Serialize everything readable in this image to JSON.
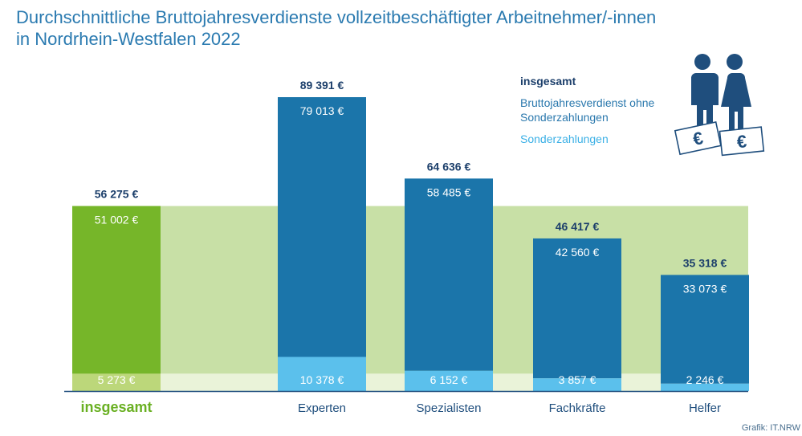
{
  "title_line1": "Durchschnittliche Bruttojahresverdienste vollzeitbeschäftigter Arbeitnehmer/-innen",
  "title_line2": "in Nordrhein-Westfalen 2022",
  "source": "Grafik: IT.NRW",
  "legend": {
    "total": "insgesamt",
    "base": "Bruttojahresverdienst ohne Sonderzahlungen",
    "special": "Sonderzahlungen"
  },
  "colors": {
    "base_highlight": "#76b629",
    "special_highlight": "#bcd77a",
    "base": "#1b75aa",
    "special": "#5bc0ec",
    "band_base": "#c8e0a6",
    "band_special": "#eaf3d9",
    "total_label": "#1c3f6b",
    "highlight_label": "#6ab023",
    "category_label": "#1f4e7d"
  },
  "chart_data": {
    "type": "bar",
    "stacked": true,
    "unit": "€",
    "categories": [
      "insgesamt",
      "Experten",
      "Spezialisten",
      "Fachkräfte",
      "Helfer"
    ],
    "series": [
      {
        "name": "Bruttojahresverdienst ohne Sonderzahlungen",
        "values": [
          51002,
          79013,
          58485,
          42560,
          33073
        ]
      },
      {
        "name": "Sonderzahlungen",
        "values": [
          5273,
          10378,
          6152,
          3857,
          2246
        ]
      }
    ],
    "totals": [
      56275,
      89391,
      64636,
      46417,
      35318
    ],
    "base_labels": [
      "51 002 €",
      "79 013 €",
      "58 485 €",
      "42 560 €",
      "33 073 €"
    ],
    "special_labels": [
      "5 273 €",
      "10 378 €",
      "6 152 €",
      "3 857 €",
      "2 246 €"
    ],
    "total_labels": [
      "56 275 €",
      "89 391 €",
      "64 636 €",
      "46 417 €",
      "35 318 €"
    ],
    "highlight_category": "insgesamt",
    "ylim": [
      0,
      89391
    ]
  }
}
